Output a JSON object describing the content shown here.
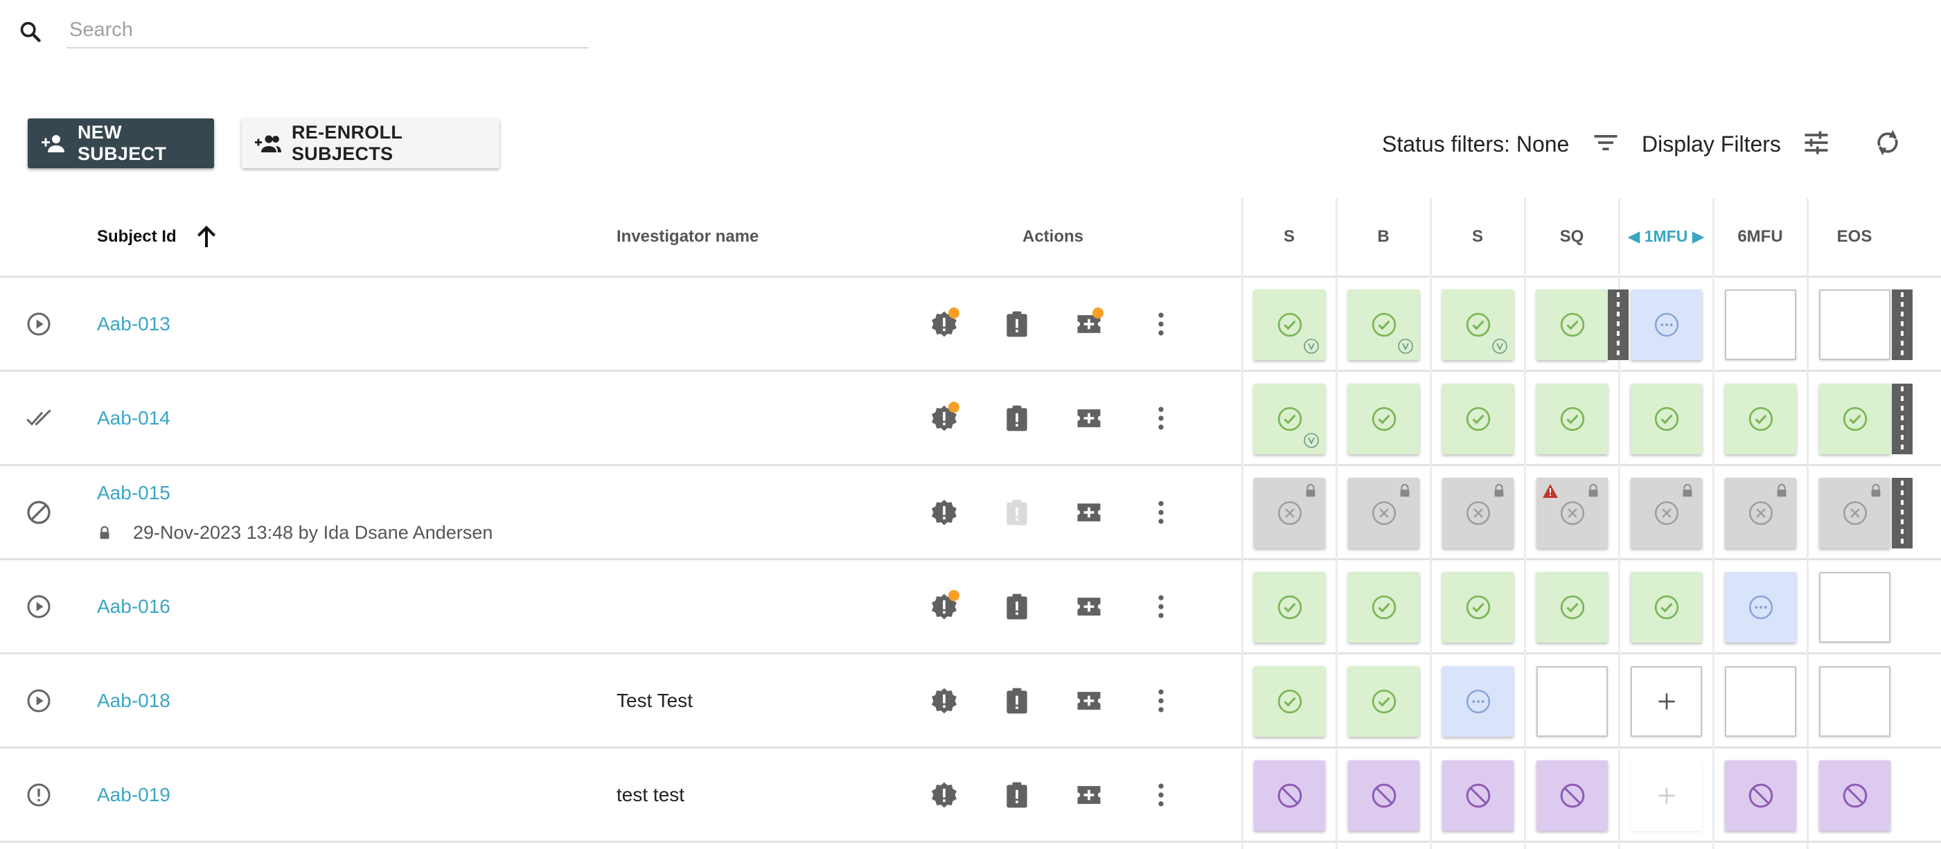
{
  "search": {
    "placeholder": "Search",
    "icon": "search-icon"
  },
  "toolbar": {
    "new_subject_label": "NEW SUBJECT",
    "reenroll_label": "RE-ENROLL SUBJECTS",
    "status_filters_label": "Status filters: None",
    "display_filters_label": "Display Filters"
  },
  "columns": {
    "subject_id": "Subject Id",
    "investigator_name": "Investigator name",
    "actions": "Actions",
    "visits": [
      "S",
      "B",
      "S",
      "SQ",
      "1MFU",
      "6MFU",
      "EOS"
    ]
  },
  "colors": {
    "link": "#3aa6c4",
    "accent_dot": "#f5a025",
    "primary_button": "#37474f",
    "cell_green": "#daf0cf",
    "cell_blue": "#d9e4fa",
    "cell_grey": "#d6d6d6",
    "cell_purple": "#dccbef"
  },
  "rows": [
    {
      "subject_id": "Aab-013",
      "investigator": "",
      "state_icon": "play-circle-icon",
      "cells": [
        "green-v",
        "green-v",
        "green-v",
        "green",
        "blue",
        "white",
        "white"
      ]
    },
    {
      "subject_id": "Aab-014",
      "investigator": "",
      "state_icon": "double-check-icon",
      "cells": [
        "green-v",
        "green",
        "green",
        "green",
        "green",
        "green",
        "green"
      ]
    },
    {
      "subject_id": "Aab-015",
      "investigator": "",
      "state_icon": "block-icon",
      "lock_info": "29-Nov-2023 13:48 by Ida Dsane Andersen",
      "cells": [
        "grey",
        "grey",
        "grey",
        "grey-warn",
        "grey",
        "grey",
        "grey"
      ]
    },
    {
      "subject_id": "Aab-016",
      "investigator": "",
      "state_icon": "play-circle-icon",
      "cells": [
        "green",
        "green",
        "green",
        "green",
        "green",
        "blue",
        "white"
      ]
    },
    {
      "subject_id": "Aab-018",
      "investigator": "Test Test",
      "state_icon": "play-circle-icon",
      "cells": [
        "green",
        "green",
        "blue",
        "white",
        "plus",
        "white",
        "white"
      ]
    },
    {
      "subject_id": "Aab-019",
      "investigator": "test test",
      "state_icon": "alert-circle-icon",
      "cells": [
        "purple",
        "purple",
        "purple",
        "purple",
        "plus-faint",
        "purple",
        "purple"
      ]
    }
  ]
}
